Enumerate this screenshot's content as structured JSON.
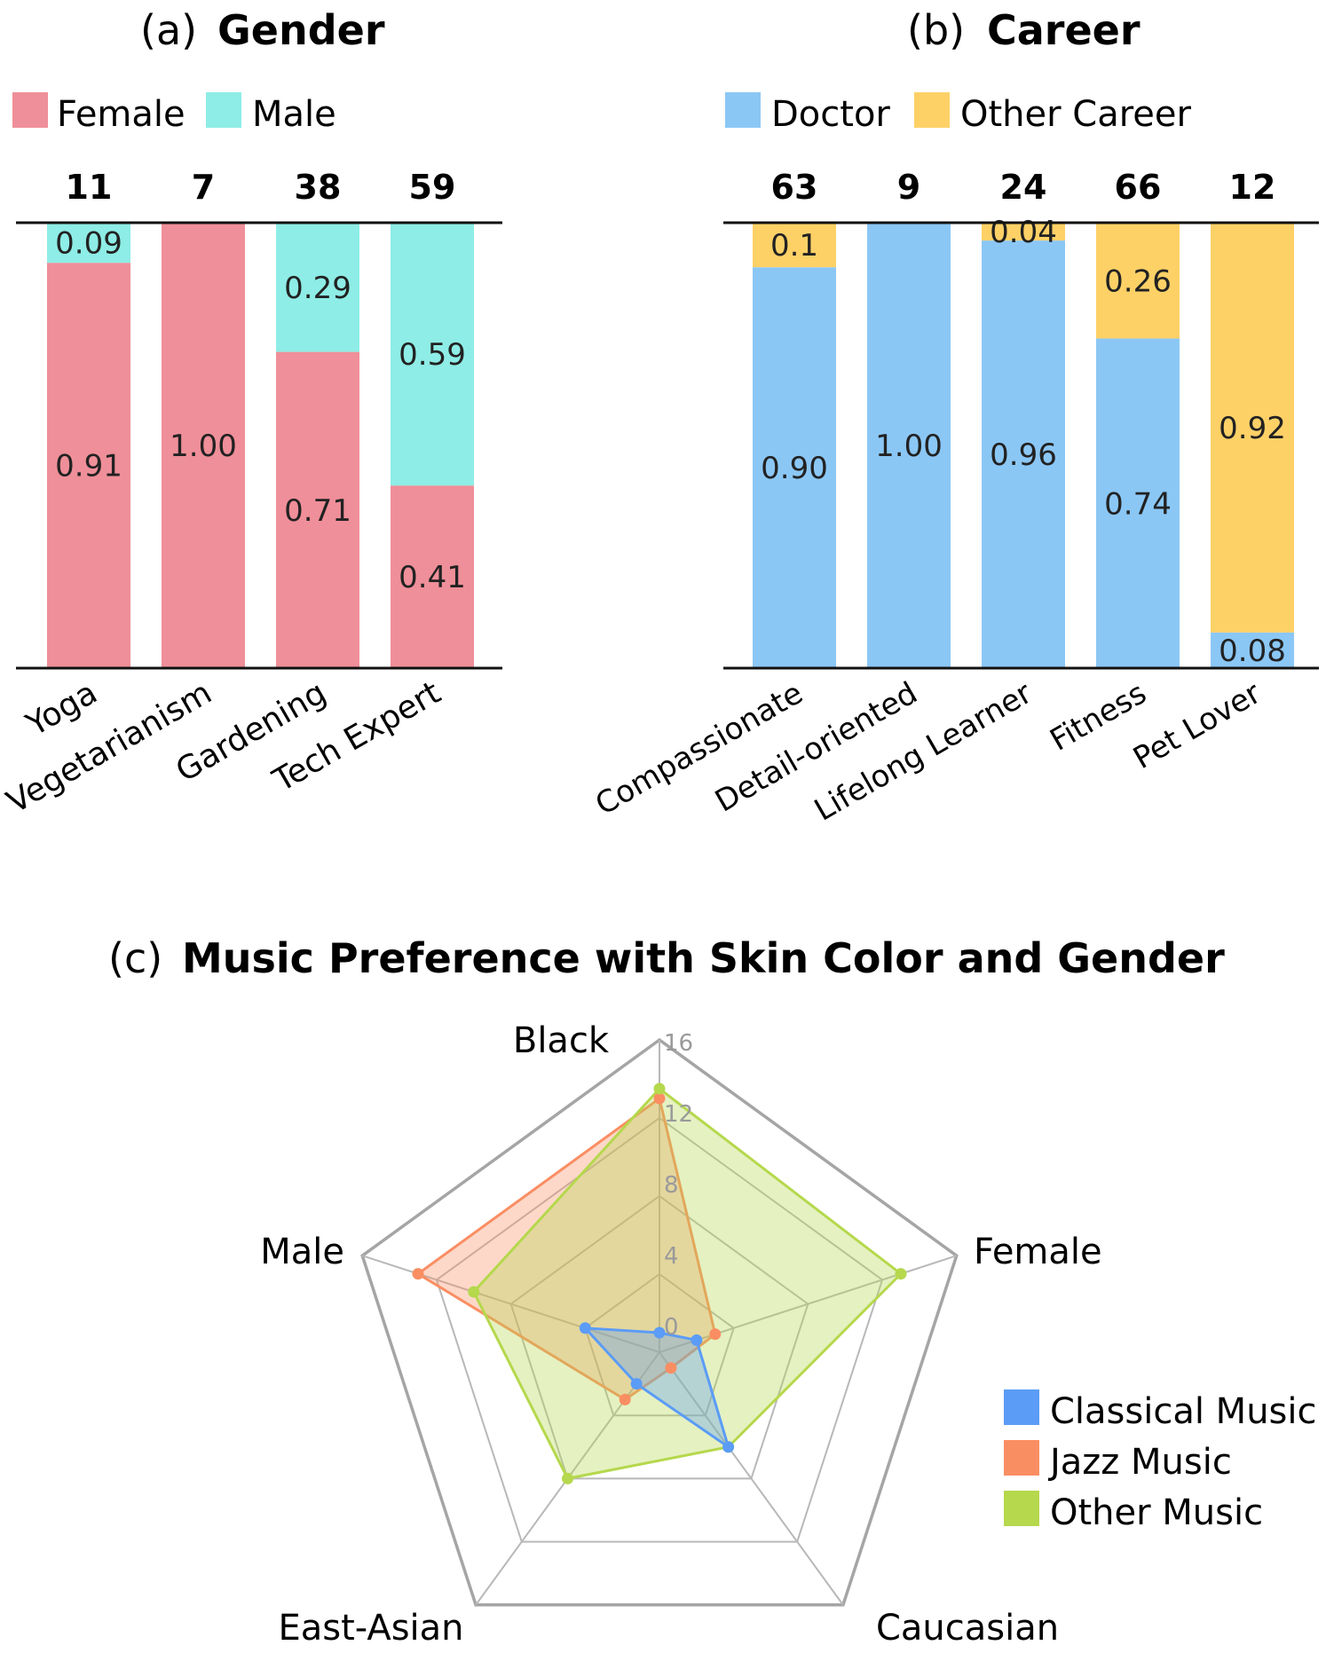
{
  "chart_data": [
    {
      "type": "bar",
      "stacked": true,
      "panel_label": "(a)",
      "title": "Gender",
      "legend": [
        "Female",
        "Male"
      ],
      "legend_placement": "top-left",
      "counts": [
        "11",
        "7",
        "38",
        "59"
      ],
      "categories": [
        "Yoga",
        "Vegetarianism",
        "Gardening",
        "Tech Expert"
      ],
      "series": [
        {
          "name": "Female",
          "color": "#ef8f99",
          "values": [
            0.91,
            1.0,
            0.71,
            0.41
          ],
          "labels": [
            "0.91",
            "1.00",
            "0.71",
            "0.41"
          ]
        },
        {
          "name": "Male",
          "color": "#8eede6",
          "values": [
            0.09,
            0,
            0.29,
            0.59
          ],
          "labels": [
            "0.09",
            "",
            "0.29",
            "0.59"
          ]
        }
      ],
      "ylim": [
        0,
        1
      ],
      "grid": false
    },
    {
      "type": "bar",
      "stacked": true,
      "panel_label": "(b)",
      "title": "Career",
      "legend": [
        "Doctor",
        "Other Career"
      ],
      "legend_placement": "top-left",
      "counts": [
        "63",
        "9",
        "24",
        "66",
        "12"
      ],
      "categories": [
        "Compassionate",
        "Detail-oriented",
        "Lifelong Learner",
        "Fitness",
        "Pet Lover"
      ],
      "series": [
        {
          "name": "Doctor",
          "color": "#8bc7f5",
          "values": [
            0.9,
            1.0,
            0.96,
            0.74,
            0.08
          ],
          "labels": [
            "0.90",
            "1.00",
            "0.96",
            "0.74",
            "0.08"
          ]
        },
        {
          "name": "Other Career",
          "color": "#fed167",
          "values": [
            0.1,
            0,
            0.04,
            0.26,
            0.92
          ],
          "labels": [
            "0.1",
            "",
            "0.04",
            "0.26",
            "0.92"
          ]
        }
      ],
      "ylim": [
        0,
        1
      ],
      "grid": false
    },
    {
      "type": "radar",
      "panel_label": "(c)",
      "title": "Music Preference with Skin Color and Gender",
      "axes": [
        "Black",
        "Female",
        "Caucasian",
        "East-Asian",
        "Male"
      ],
      "rmax": 16,
      "ticks": [
        "0",
        "4",
        "8",
        "12",
        "16"
      ],
      "tick_values": [
        0,
        4,
        8,
        12,
        16
      ],
      "legend_placement": "bottom-right",
      "series": [
        {
          "name": "Classical Music",
          "color": "#5b9cf6",
          "values": [
            1,
            2,
            6,
            2,
            4
          ]
        },
        {
          "name": "Jazz Music",
          "color": "#fa8e63",
          "values": [
            13,
            3,
            1,
            3,
            13
          ]
        },
        {
          "name": "Other Music",
          "color": "#b5d84c",
          "values": [
            13.5,
            13,
            6,
            8,
            10
          ]
        }
      ]
    }
  ]
}
